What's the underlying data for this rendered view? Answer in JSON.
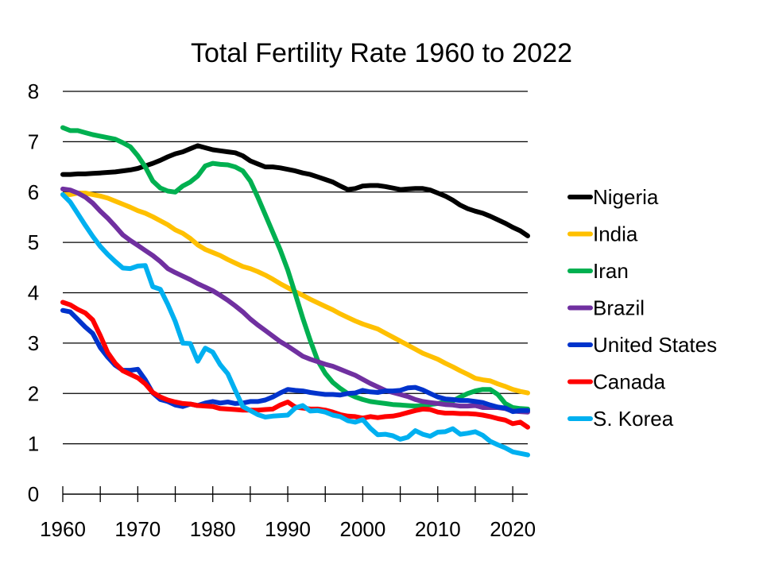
{
  "chart_data": {
    "type": "line",
    "title": "Total Fertility Rate 1960 to 2022",
    "xlabel": "",
    "ylabel": "",
    "xlim": [
      1960,
      2022
    ],
    "ylim": [
      0,
      8
    ],
    "grid": true,
    "legend_position": "right",
    "yticks": [
      "0",
      "1",
      "2",
      "3",
      "4",
      "5",
      "6",
      "7",
      "8"
    ],
    "xticks": [
      "1960",
      "1970",
      "1980",
      "1990",
      "2000",
      "2010",
      "2020"
    ],
    "x": [
      1960,
      1961,
      1962,
      1963,
      1964,
      1965,
      1966,
      1967,
      1968,
      1969,
      1970,
      1971,
      1972,
      1973,
      1974,
      1975,
      1976,
      1977,
      1978,
      1979,
      1980,
      1981,
      1982,
      1983,
      1984,
      1985,
      1986,
      1987,
      1988,
      1989,
      1990,
      1991,
      1992,
      1993,
      1994,
      1995,
      1996,
      1997,
      1998,
      1999,
      2000,
      2001,
      2002,
      2003,
      2004,
      2005,
      2006,
      2007,
      2008,
      2009,
      2010,
      2011,
      2012,
      2013,
      2014,
      2015,
      2016,
      2017,
      2018,
      2019,
      2020,
      2021,
      2022
    ],
    "series": [
      {
        "name": "Nigeria",
        "color": "#000000",
        "values": [
          6.35,
          6.35,
          6.36,
          6.36,
          6.37,
          6.38,
          6.39,
          6.4,
          6.42,
          6.44,
          6.47,
          6.52,
          6.57,
          6.63,
          6.7,
          6.76,
          6.8,
          6.86,
          6.92,
          6.88,
          6.84,
          6.82,
          6.8,
          6.78,
          6.72,
          6.62,
          6.56,
          6.5,
          6.5,
          6.48,
          6.45,
          6.42,
          6.38,
          6.35,
          6.3,
          6.25,
          6.2,
          6.12,
          6.05,
          6.07,
          6.12,
          6.13,
          6.13,
          6.11,
          6.08,
          6.05,
          6.06,
          6.07,
          6.07,
          6.04,
          5.98,
          5.92,
          5.84,
          5.74,
          5.67,
          5.62,
          5.58,
          5.52,
          5.45,
          5.38,
          5.3,
          5.23,
          5.13
        ]
      },
      {
        "name": "India",
        "color": "#FFC000",
        "values": [
          5.95,
          5.95,
          5.98,
          5.98,
          5.95,
          5.92,
          5.88,
          5.82,
          5.76,
          5.7,
          5.63,
          5.58,
          5.51,
          5.43,
          5.35,
          5.25,
          5.18,
          5.08,
          4.95,
          4.86,
          4.8,
          4.74,
          4.66,
          4.59,
          4.52,
          4.48,
          4.42,
          4.35,
          4.27,
          4.18,
          4.1,
          4.02,
          3.95,
          3.87,
          3.8,
          3.73,
          3.66,
          3.58,
          3.51,
          3.44,
          3.38,
          3.33,
          3.28,
          3.2,
          3.12,
          3.04,
          2.96,
          2.88,
          2.8,
          2.74,
          2.68,
          2.6,
          2.53,
          2.45,
          2.38,
          2.3,
          2.27,
          2.25,
          2.19,
          2.14,
          2.08,
          2.04,
          2.01
        ]
      },
      {
        "name": "Iran",
        "color": "#00B050",
        "values": [
          7.28,
          7.22,
          7.22,
          7.18,
          7.14,
          7.11,
          7.08,
          7.05,
          6.98,
          6.9,
          6.72,
          6.5,
          6.22,
          6.08,
          6.02,
          6.0,
          6.12,
          6.2,
          6.32,
          6.52,
          6.57,
          6.55,
          6.54,
          6.5,
          6.42,
          6.22,
          5.9,
          5.55,
          5.2,
          4.85,
          4.45,
          3.98,
          3.5,
          3.05,
          2.65,
          2.4,
          2.22,
          2.1,
          2.0,
          1.93,
          1.88,
          1.84,
          1.82,
          1.8,
          1.78,
          1.77,
          1.76,
          1.75,
          1.76,
          1.78,
          1.8,
          1.83,
          1.85,
          1.93,
          2.0,
          2.05,
          2.08,
          2.08,
          1.98,
          1.8,
          1.72,
          1.7,
          1.69
        ]
      },
      {
        "name": "Brazil",
        "color": "#7030A0",
        "values": [
          6.06,
          6.04,
          5.98,
          5.9,
          5.78,
          5.62,
          5.48,
          5.32,
          5.15,
          5.04,
          4.94,
          4.84,
          4.74,
          4.62,
          4.48,
          4.4,
          4.33,
          4.26,
          4.18,
          4.11,
          4.04,
          3.95,
          3.85,
          3.74,
          3.62,
          3.48,
          3.36,
          3.25,
          3.14,
          3.03,
          2.94,
          2.84,
          2.74,
          2.68,
          2.63,
          2.58,
          2.54,
          2.48,
          2.42,
          2.36,
          2.28,
          2.2,
          2.13,
          2.06,
          2.02,
          1.98,
          1.94,
          1.88,
          1.84,
          1.82,
          1.8,
          1.78,
          1.77,
          1.75,
          1.75,
          1.76,
          1.72,
          1.72,
          1.72,
          1.7,
          1.65,
          1.64,
          1.63
        ]
      },
      {
        "name": "United States",
        "color": "#0033CC",
        "values": [
          3.65,
          3.62,
          3.47,
          3.32,
          3.19,
          2.91,
          2.72,
          2.56,
          2.46,
          2.46,
          2.48,
          2.27,
          2.01,
          1.88,
          1.84,
          1.77,
          1.74,
          1.79,
          1.76,
          1.81,
          1.84,
          1.81,
          1.83,
          1.8,
          1.81,
          1.84,
          1.84,
          1.87,
          1.93,
          2.01,
          2.08,
          2.06,
          2.05,
          2.02,
          2.0,
          1.98,
          1.98,
          1.97,
          2.0,
          2.01,
          2.06,
          2.03,
          2.02,
          2.05,
          2.05,
          2.06,
          2.11,
          2.12,
          2.07,
          2.0,
          1.93,
          1.89,
          1.88,
          1.86,
          1.86,
          1.84,
          1.82,
          1.77,
          1.73,
          1.71,
          1.64,
          1.66,
          1.66
        ]
      },
      {
        "name": "Canada",
        "color": "#FF0000",
        "values": [
          3.81,
          3.76,
          3.67,
          3.6,
          3.46,
          3.15,
          2.81,
          2.6,
          2.45,
          2.38,
          2.31,
          2.19,
          2.02,
          1.93,
          1.87,
          1.83,
          1.8,
          1.79,
          1.76,
          1.75,
          1.74,
          1.7,
          1.69,
          1.68,
          1.67,
          1.67,
          1.67,
          1.68,
          1.69,
          1.77,
          1.83,
          1.73,
          1.71,
          1.69,
          1.69,
          1.67,
          1.63,
          1.58,
          1.55,
          1.54,
          1.51,
          1.54,
          1.52,
          1.54,
          1.55,
          1.58,
          1.62,
          1.66,
          1.69,
          1.68,
          1.63,
          1.61,
          1.61,
          1.6,
          1.6,
          1.59,
          1.57,
          1.54,
          1.5,
          1.47,
          1.4,
          1.43,
          1.33
        ]
      },
      {
        "name": "S. Korea",
        "color": "#00B0F0",
        "values": [
          5.95,
          5.8,
          5.57,
          5.34,
          5.12,
          4.92,
          4.76,
          4.62,
          4.49,
          4.48,
          4.53,
          4.54,
          4.12,
          4.07,
          3.77,
          3.43,
          3.0,
          2.99,
          2.64,
          2.9,
          2.82,
          2.57,
          2.39,
          2.06,
          1.74,
          1.66,
          1.58,
          1.53,
          1.55,
          1.56,
          1.57,
          1.71,
          1.76,
          1.65,
          1.66,
          1.63,
          1.57,
          1.54,
          1.46,
          1.43,
          1.48,
          1.31,
          1.18,
          1.19,
          1.16,
          1.09,
          1.13,
          1.26,
          1.19,
          1.15,
          1.23,
          1.24,
          1.3,
          1.19,
          1.21,
          1.24,
          1.17,
          1.05,
          0.98,
          0.92,
          0.84,
          0.81,
          0.78
        ]
      }
    ]
  }
}
